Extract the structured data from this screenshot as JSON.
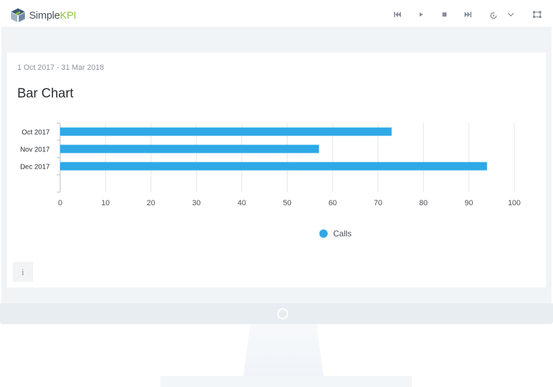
{
  "app": {
    "logo_simple": "Simple",
    "logo_kpi": "KPI"
  },
  "toolbar": {
    "icons": [
      "skip-back-icon",
      "play-icon",
      "stop-icon",
      "skip-forward-icon",
      "refresh-icon",
      "chevron-down-icon",
      "fullscreen-icon"
    ]
  },
  "widget": {
    "date_range": "1 Oct 2017 - 31 Mar 2018",
    "title": "Bar Chart",
    "info_label": "i"
  },
  "colors": {
    "bar": "#2ea9e6",
    "grid": "#e3e6ea",
    "logo_green": "#8cc63f"
  },
  "chart_data": {
    "type": "bar",
    "orientation": "horizontal",
    "categories": [
      "Oct 2017",
      "Nov 2017",
      "Dec 2017"
    ],
    "series": [
      {
        "name": "Calls",
        "values": [
          73,
          57,
          94
        ]
      }
    ],
    "xlim": [
      0,
      100
    ],
    "xticks": [
      0,
      10,
      20,
      30,
      40,
      50,
      60,
      70,
      80,
      90,
      100
    ],
    "grid": true,
    "legend": "bottom-center"
  }
}
